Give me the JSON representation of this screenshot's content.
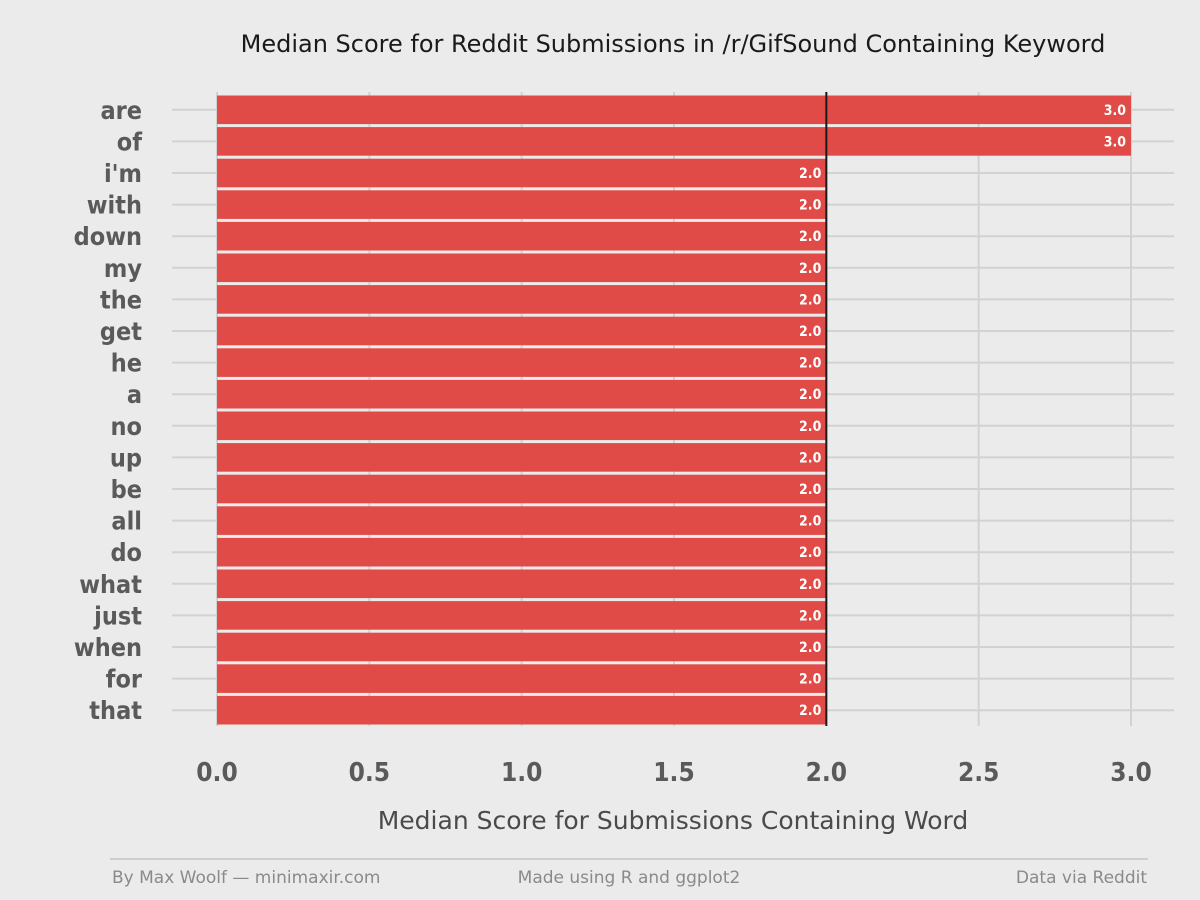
{
  "chart_data": {
    "type": "bar",
    "orientation": "horizontal",
    "title": "Median Score for Reddit Submissions in /r/GifSound Containing Keyword",
    "xlabel": "Median Score for Submissions Containing Word",
    "ylabel": "",
    "categories": [
      "are",
      "of",
      "i'm",
      "with",
      "down",
      "my",
      "the",
      "get",
      "he",
      "a",
      "no",
      "up",
      "be",
      "all",
      "do",
      "what",
      "just",
      "when",
      "for",
      "that"
    ],
    "values": [
      3.0,
      3.0,
      2.0,
      2.0,
      2.0,
      2.0,
      2.0,
      2.0,
      2.0,
      2.0,
      2.0,
      2.0,
      2.0,
      2.0,
      2.0,
      2.0,
      2.0,
      2.0,
      2.0,
      2.0
    ],
    "data_labels": [
      "3.0",
      "3.0",
      "2.0",
      "2.0",
      "2.0",
      "2.0",
      "2.0",
      "2.0",
      "2.0",
      "2.0",
      "2.0",
      "2.0",
      "2.0",
      "2.0",
      "2.0",
      "2.0",
      "2.0",
      "2.0",
      "2.0",
      "2.0"
    ],
    "xticks": [
      0.0,
      0.5,
      1.0,
      1.5,
      2.0,
      2.5,
      3.0
    ],
    "xtick_labels": [
      "0.0",
      "0.5",
      "1.0",
      "1.5",
      "2.0",
      "2.5",
      "3.0"
    ],
    "xlim": [
      0.0,
      3.0
    ],
    "reference_line": 2.0,
    "grid": true,
    "legend": "none",
    "bar_color": "#e04b47",
    "background_color": "#ebebeb"
  },
  "footer": {
    "left": "By Max Woolf — minimaxir.com",
    "center": "Made using R and ggplot2",
    "right": "Data via Reddit"
  }
}
